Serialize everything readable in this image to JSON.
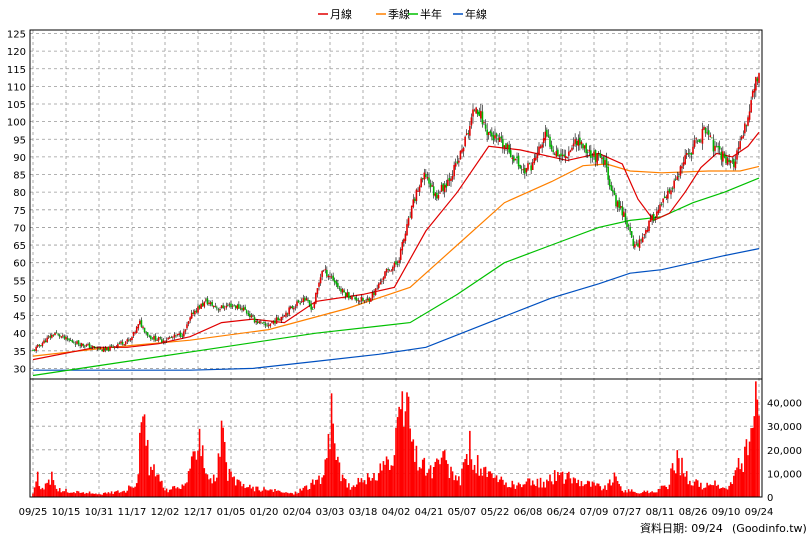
{
  "chart_data": {
    "type": "candlestick",
    "legend": [
      {
        "label": "月線",
        "color": "#e00000"
      },
      {
        "label": "季線",
        "color": "#ff8000"
      },
      {
        "label": "半年",
        "color": "#00c000"
      },
      {
        "label": "年線",
        "color": "#0050c0"
      }
    ],
    "colors": {
      "up": "#e00000",
      "down": "#00b000",
      "volume": "#ff0000"
    },
    "price_axis": {
      "ylim": [
        27,
        126
      ],
      "ticks": [
        30,
        35,
        40,
        45,
        50,
        55,
        60,
        65,
        70,
        75,
        80,
        85,
        90,
        95,
        100,
        105,
        110,
        115,
        120,
        125
      ],
      "side": "left"
    },
    "volume_axis": {
      "ylim": [
        0,
        50000
      ],
      "ticks": [
        0,
        10000,
        20000,
        30000,
        40000
      ],
      "tick_labels": [
        "0",
        "10,000",
        "20,000",
        "30,000",
        "40,000"
      ],
      "side": "right"
    },
    "x_ticks": [
      "09/25",
      "10/15",
      "10/31",
      "11/17",
      "12/02",
      "12/17",
      "01/05",
      "01/20",
      "02/04",
      "03/03",
      "03/18",
      "04/02",
      "04/21",
      "05/07",
      "05/22",
      "06/08",
      "06/24",
      "07/09",
      "07/27",
      "08/11",
      "08/26",
      "09/10",
      "09/24"
    ],
    "grid": true,
    "source_label": "資料日期: 09/24",
    "source_site": "(Goodinfo.tw)",
    "close_anchors": [
      [
        0,
        35
      ],
      [
        8,
        38
      ],
      [
        14,
        40
      ],
      [
        22,
        38
      ],
      [
        30,
        37
      ],
      [
        38,
        36
      ],
      [
        46,
        35
      ],
      [
        54,
        37
      ],
      [
        62,
        38
      ],
      [
        68,
        43
      ],
      [
        74,
        39
      ],
      [
        82,
        38
      ],
      [
        90,
        39
      ],
      [
        96,
        40
      ],
      [
        102,
        46
      ],
      [
        110,
        49
      ],
      [
        118,
        47
      ],
      [
        126,
        48
      ],
      [
        134,
        47
      ],
      [
        140,
        44
      ],
      [
        148,
        42
      ],
      [
        156,
        44
      ],
      [
        164,
        47
      ],
      [
        172,
        50
      ],
      [
        178,
        47
      ],
      [
        184,
        58
      ],
      [
        190,
        56
      ],
      [
        196,
        52
      ],
      [
        204,
        50
      ],
      [
        212,
        49
      ],
      [
        218,
        52
      ],
      [
        224,
        57
      ],
      [
        232,
        60
      ],
      [
        238,
        70
      ],
      [
        244,
        80
      ],
      [
        250,
        85
      ],
      [
        256,
        79
      ],
      [
        262,
        82
      ],
      [
        270,
        88
      ],
      [
        276,
        96
      ],
      [
        282,
        105
      ],
      [
        288,
        98
      ],
      [
        294,
        95
      ],
      [
        300,
        93
      ],
      [
        306,
        90
      ],
      [
        312,
        86
      ],
      [
        318,
        88
      ],
      [
        326,
        96
      ],
      [
        332,
        92
      ],
      [
        338,
        90
      ],
      [
        346,
        95
      ],
      [
        352,
        92
      ],
      [
        358,
        90
      ],
      [
        364,
        88
      ],
      [
        370,
        78
      ],
      [
        376,
        74
      ],
      [
        382,
        65
      ],
      [
        386,
        66
      ],
      [
        392,
        71
      ],
      [
        398,
        75
      ],
      [
        404,
        79
      ],
      [
        410,
        84
      ],
      [
        416,
        90
      ],
      [
        422,
        94
      ],
      [
        428,
        98
      ],
      [
        434,
        92
      ],
      [
        440,
        90
      ],
      [
        446,
        88
      ],
      [
        452,
        96
      ],
      [
        456,
        104
      ],
      [
        460,
        112
      ]
    ],
    "ma_month": [
      [
        0,
        32.5
      ],
      [
        40,
        36
      ],
      [
        60,
        36
      ],
      [
        80,
        37
      ],
      [
        100,
        39
      ],
      [
        120,
        43
      ],
      [
        140,
        44
      ],
      [
        160,
        43
      ],
      [
        180,
        49
      ],
      [
        210,
        51
      ],
      [
        230,
        53
      ],
      [
        250,
        69
      ],
      [
        270,
        80
      ],
      [
        290,
        93
      ],
      [
        310,
        92
      ],
      [
        340,
        89
      ],
      [
        360,
        91
      ],
      [
        375,
        88
      ],
      [
        385,
        78
      ],
      [
        395,
        72
      ],
      [
        405,
        74
      ],
      [
        415,
        80
      ],
      [
        425,
        87
      ],
      [
        435,
        91
      ],
      [
        445,
        90
      ],
      [
        455,
        93
      ],
      [
        462,
        97
      ]
    ],
    "ma_quarter": [
      [
        0,
        33.5
      ],
      [
        50,
        36
      ],
      [
        100,
        38
      ],
      [
        150,
        41
      ],
      [
        200,
        47
      ],
      [
        240,
        53
      ],
      [
        270,
        65
      ],
      [
        300,
        77
      ],
      [
        330,
        83
      ],
      [
        350,
        87.5
      ],
      [
        365,
        88
      ],
      [
        380,
        86
      ],
      [
        400,
        85.5
      ],
      [
        430,
        86
      ],
      [
        450,
        86
      ],
      [
        462,
        87.3
      ]
    ],
    "ma_half": [
      [
        0,
        28
      ],
      [
        60,
        32
      ],
      [
        120,
        36
      ],
      [
        180,
        40
      ],
      [
        240,
        43
      ],
      [
        270,
        51
      ],
      [
        300,
        60
      ],
      [
        330,
        65
      ],
      [
        360,
        70
      ],
      [
        380,
        72
      ],
      [
        400,
        73
      ],
      [
        420,
        77
      ],
      [
        440,
        80
      ],
      [
        462,
        84
      ]
    ],
    "ma_year": [
      [
        0,
        29.5
      ],
      [
        100,
        29.5
      ],
      [
        140,
        30
      ],
      [
        180,
        32
      ],
      [
        220,
        34
      ],
      [
        250,
        36
      ],
      [
        290,
        43
      ],
      [
        330,
        50
      ],
      [
        360,
        54
      ],
      [
        380,
        57
      ],
      [
        400,
        58
      ],
      [
        420,
        60
      ],
      [
        440,
        62
      ],
      [
        462,
        64
      ]
    ],
    "volume_anchors": [
      [
        0,
        2000
      ],
      [
        3,
        10000
      ],
      [
        6,
        3000
      ],
      [
        12,
        9000
      ],
      [
        16,
        3000
      ],
      [
        30,
        2000
      ],
      [
        46,
        1500
      ],
      [
        54,
        2500
      ],
      [
        60,
        3000
      ],
      [
        66,
        8000
      ],
      [
        70,
        34000
      ],
      [
        74,
        15000
      ],
      [
        78,
        10000
      ],
      [
        84,
        3000
      ],
      [
        94,
        4000
      ],
      [
        100,
        10000
      ],
      [
        106,
        34000
      ],
      [
        110,
        12000
      ],
      [
        116,
        7000
      ],
      [
        120,
        28000
      ],
      [
        124,
        10000
      ],
      [
        130,
        6000
      ],
      [
        140,
        4000
      ],
      [
        150,
        3000
      ],
      [
        166,
        1500
      ],
      [
        172,
        4000
      ],
      [
        178,
        6000
      ],
      [
        184,
        8000
      ],
      [
        190,
        34000
      ],
      [
        196,
        8000
      ],
      [
        204,
        4000
      ],
      [
        210,
        9000
      ],
      [
        216,
        7000
      ],
      [
        220,
        12000
      ],
      [
        224,
        18000
      ],
      [
        228,
        12000
      ],
      [
        234,
        34000
      ],
      [
        238,
        44000
      ],
      [
        242,
        20000
      ],
      [
        248,
        14000
      ],
      [
        254,
        11000
      ],
      [
        260,
        18000
      ],
      [
        266,
        10000
      ],
      [
        272,
        8000
      ],
      [
        278,
        22000
      ],
      [
        282,
        15000
      ],
      [
        288,
        10000
      ],
      [
        294,
        8000
      ],
      [
        300,
        6000
      ],
      [
        310,
        5000
      ],
      [
        318,
        7000
      ],
      [
        326,
        6000
      ],
      [
        334,
        10000
      ],
      [
        344,
        8000
      ],
      [
        354,
        6000
      ],
      [
        364,
        4000
      ],
      [
        370,
        8000
      ],
      [
        376,
        3000
      ],
      [
        386,
        2000
      ],
      [
        396,
        2500
      ],
      [
        404,
        5000
      ],
      [
        410,
        18000
      ],
      [
        416,
        9000
      ],
      [
        424,
        5000
      ],
      [
        432,
        6000
      ],
      [
        442,
        3000
      ],
      [
        450,
        15000
      ],
      [
        456,
        22000
      ],
      [
        460,
        48000
      ]
    ],
    "total_days": 463,
    "seed": 11
  }
}
